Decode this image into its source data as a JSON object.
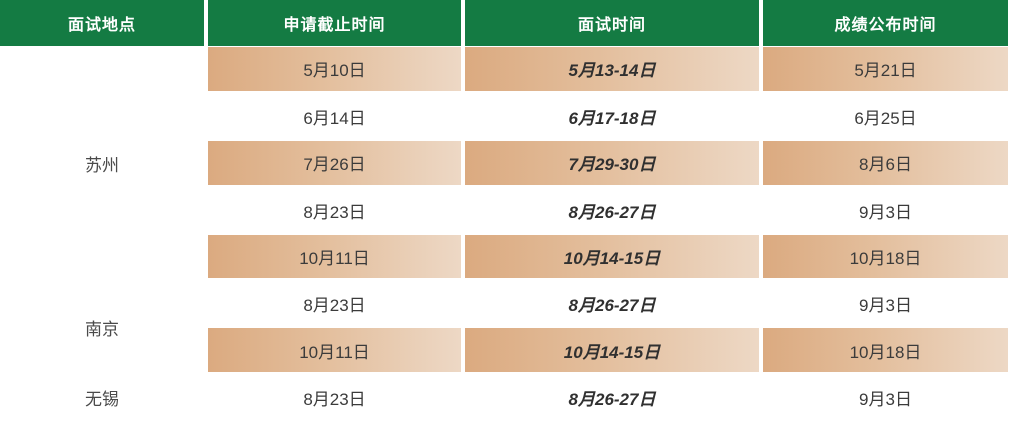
{
  "table": {
    "header": {
      "location": "面试地点",
      "deadline": "申请截止时间",
      "interview": "面试时间",
      "results": "成绩公布时间"
    },
    "locations": [
      {
        "name": "苏州",
        "row_span": 5
      },
      {
        "name": "南京",
        "row_span": 2
      },
      {
        "name": "无锡",
        "row_span": 1
      }
    ],
    "rows": [
      {
        "deadline": "5月10日",
        "interview": "5月13-14日",
        "results": "5月21日",
        "highlighted": true
      },
      {
        "deadline": "6月14日",
        "interview": "6月17-18日",
        "results": "6月25日",
        "highlighted": false
      },
      {
        "deadline": "7月26日",
        "interview": "7月29-30日",
        "results": "8月6日",
        "highlighted": true
      },
      {
        "deadline": "8月23日",
        "interview": "8月26-27日",
        "results": "9月3日",
        "highlighted": false
      },
      {
        "deadline": "10月11日",
        "interview": "10月14-15日",
        "results": "10月18日",
        "highlighted": true
      },
      {
        "deadline": "8月23日",
        "interview": "8月26-27日",
        "results": "9月3日",
        "highlighted": false
      },
      {
        "deadline": "10月11日",
        "interview": "10月14-15日",
        "results": "10月18日",
        "highlighted": true
      },
      {
        "deadline": "8月23日",
        "interview": "8月26-27日",
        "results": "9月3日",
        "highlighted": false
      }
    ],
    "colors": {
      "header_bg": "#147B43",
      "header_text": "#FFFFFF",
      "stripe_gradient_start": "#DBAA80",
      "stripe_gradient_end": "#EDD8C5",
      "body_text": "#3B3B3B"
    }
  }
}
